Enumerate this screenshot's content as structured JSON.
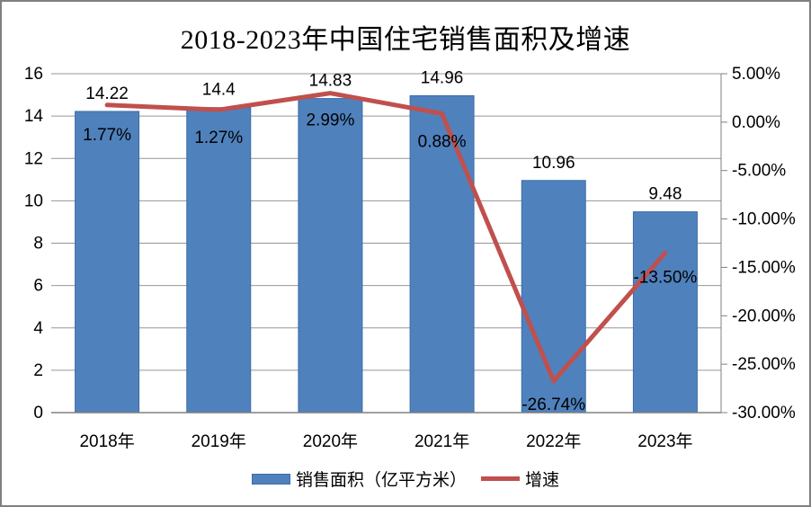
{
  "window": {
    "background": "#FFFFFF",
    "frame_border_color": "#808080"
  },
  "chart_data": {
    "type": "combo-bar-line",
    "title": "2018-2023年中国住宅销售面积及增速",
    "categories": [
      "2018年",
      "2019年",
      "2020年",
      "2021年",
      "2022年",
      "2023年"
    ],
    "series": [
      {
        "name": "销售面积（亿平方米）",
        "type": "bar",
        "axis": "left",
        "color": "#4F81BD",
        "border_color": "#3C6DA8",
        "values": [
          14.22,
          14.4,
          14.83,
          14.96,
          10.96,
          9.48
        ],
        "labels": [
          "14.22",
          "14.4",
          "14.83",
          "14.96",
          "10.96",
          "9.48"
        ]
      },
      {
        "name": "增速",
        "type": "line",
        "axis": "right",
        "color": "#C0504D",
        "values": [
          1.77,
          1.27,
          2.99,
          0.88,
          -26.74,
          -13.5
        ],
        "labels": [
          "1.77%",
          "1.27%",
          "2.99%",
          "0.88%",
          "-26.74%",
          "-13.50%"
        ]
      }
    ],
    "left_axis": {
      "min": 0,
      "max": 16,
      "step": 2,
      "tick_labels": [
        "0",
        "2",
        "4",
        "6",
        "8",
        "10",
        "12",
        "14",
        "16"
      ]
    },
    "right_axis": {
      "min": -30,
      "max": 5,
      "step": 5,
      "tick_labels": [
        "-30.00%",
        "-25.00%",
        "-20.00%",
        "-15.00%",
        "-10.00%",
        "-5.00%",
        "0.00%",
        "5.00%"
      ]
    },
    "grid": true,
    "legend_position": "bottom",
    "colors": {
      "grid": "#969696",
      "axis": "#808080",
      "text": "#000000"
    }
  }
}
